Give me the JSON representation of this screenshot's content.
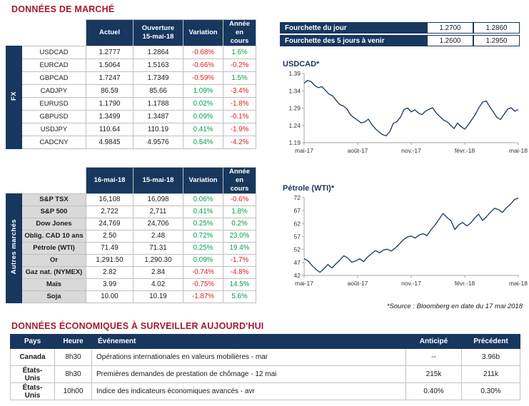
{
  "section1": {
    "title": "DONNÉES DE MARCHÉ"
  },
  "section2": {
    "title": "DONNÉES ÉCONOMIQUES À SURVEILLER AUJOURD'HUI"
  },
  "source_note": "*Source : Bloomberg en date du 17 mai 2018",
  "colors": {
    "navy": "#17375E",
    "title_red": "#A6192E",
    "positive": "#00A14B",
    "negative": "#E31B23",
    "label_gray": "#D9D9D9"
  },
  "fx_table": {
    "group_label": "FX",
    "headers": [
      "Actuel",
      "Ouverture\n15-mai-18",
      "Variation",
      "Année en cours"
    ],
    "rows": [
      {
        "label": "USDCAD",
        "values": [
          "1.2777",
          "1.2864",
          "-0.68%",
          "1.6%"
        ]
      },
      {
        "label": "EURCAD",
        "values": [
          "1.5064",
          "1.5163",
          "-0.66%",
          "-0.2%"
        ]
      },
      {
        "label": "GBPCAD",
        "values": [
          "1.7247",
          "1.7349",
          "-0.59%",
          "1.5%"
        ]
      },
      {
        "label": "CADJPY",
        "values": [
          "86.59",
          "85.66",
          "1.09%",
          "-3.4%"
        ]
      },
      {
        "label": "EURUSD",
        "values": [
          "1.1790",
          "1.1788",
          "0.02%",
          "-1.8%"
        ]
      },
      {
        "label": "GBPUSD",
        "values": [
          "1.3499",
          "1.3487",
          "0.09%",
          "-0.1%"
        ]
      },
      {
        "label": "USDJPY",
        "values": [
          "110.64",
          "110.19",
          "0.41%",
          "-1.9%"
        ]
      },
      {
        "label": "CADCNY",
        "values": [
          "4.9845",
          "4.9576",
          "0.54%",
          "-4.2%"
        ]
      }
    ]
  },
  "range_table": {
    "rows": [
      {
        "label": "Fourchette du jour",
        "low": "1.2700",
        "high": "1.2860"
      },
      {
        "label": "Fourchette des 5 jours à venir",
        "low": "1.2600",
        "high": "1.2950"
      }
    ]
  },
  "markets_table": {
    "group_label": "Autres marchés",
    "headers": [
      "16-mai-18",
      "15-mai-18",
      "Variation",
      "Année en cours"
    ],
    "rows": [
      {
        "label": "S&P TSX",
        "values": [
          "16,108",
          "16,098",
          "0.06%",
          "-0.6%"
        ]
      },
      {
        "label": "S&P 500",
        "values": [
          "2,722",
          "2,711",
          "0.41%",
          "1.8%"
        ]
      },
      {
        "label": "Dow Jones",
        "values": [
          "24,769",
          "24,706",
          "0.25%",
          "0.2%"
        ]
      },
      {
        "label": "Oblig. CAD 10 ans",
        "values": [
          "2.50",
          "2.48",
          "0.72%",
          "23.0%"
        ]
      },
      {
        "label": "Pétrole (WTI)",
        "values": [
          "71.49",
          "71.31",
          "0.25%",
          "19.4%"
        ]
      },
      {
        "label": "Or",
        "values": [
          "1,291.50",
          "1,290.30",
          "0.09%",
          "-1.7%"
        ]
      },
      {
        "label": "Gaz nat. (NYMEX)",
        "values": [
          "2.82",
          "2.84",
          "-0.74%",
          "-4.8%"
        ]
      },
      {
        "label": "Maïs",
        "values": [
          "3.99",
          "4.02",
          "-0.75%",
          "14.5%"
        ]
      },
      {
        "label": "Soja",
        "values": [
          "10.00",
          "10.19",
          "-1.87%",
          "5.6%"
        ]
      }
    ]
  },
  "events_table": {
    "headers": [
      "Pays",
      "Heure",
      "Événement",
      "Anticipé",
      "Précédent"
    ],
    "rows": [
      {
        "country": "Canada",
        "time": "8h30",
        "event": "Opérations internationales en valeurs mobilières - mar",
        "anticipated": "--",
        "previous": "3.96b"
      },
      {
        "country": "États-Unis",
        "time": "8h30",
        "event": "Premières demandes de prestation de chômage - 12 mai",
        "anticipated": "215k",
        "previous": "211k"
      },
      {
        "country": "États-Unis",
        "time": "10h00",
        "event": "Indice des indicateurs économiques avancés - avr",
        "anticipated": "0.40%",
        "previous": "0.30%"
      }
    ]
  },
  "chart_data": [
    {
      "type": "line",
      "title": "USDCAD*",
      "x_ticks": [
        "mai-17",
        "août-17",
        "nov.-17",
        "févr.-18",
        "mai-18"
      ],
      "y_ticks": [
        "1.19",
        "1.24",
        "1.29",
        "1.34",
        "1.39"
      ],
      "ylim": [
        1.19,
        1.39
      ],
      "line_color": "#17375E",
      "grid": false,
      "values": [
        1.362,
        1.37,
        1.366,
        1.355,
        1.349,
        1.352,
        1.341,
        1.33,
        1.325,
        1.312,
        1.3,
        1.296,
        1.288,
        1.27,
        1.262,
        1.255,
        1.247,
        1.25,
        1.258,
        1.242,
        1.23,
        1.221,
        1.213,
        1.21,
        1.222,
        1.246,
        1.251,
        1.264,
        1.286,
        1.29,
        1.279,
        1.285,
        1.276,
        1.271,
        1.281,
        1.287,
        1.291,
        1.276,
        1.266,
        1.256,
        1.251,
        1.241,
        1.231,
        1.247,
        1.236,
        1.229,
        1.242,
        1.257,
        1.272,
        1.292,
        1.307,
        1.311,
        1.294,
        1.279,
        1.263,
        1.257,
        1.272,
        1.287,
        1.291,
        1.281,
        1.286
      ]
    },
    {
      "type": "line",
      "title": "Pétrole (WTI)*",
      "x_ticks": [
        "mai-17",
        "août-17",
        "nov.-17",
        "févr.-18",
        "mai-18"
      ],
      "y_ticks": [
        "42",
        "47",
        "52",
        "57",
        "62",
        "67",
        "72"
      ],
      "ylim": [
        42,
        72
      ],
      "line_color": "#17375E",
      "grid": false,
      "values": [
        48.5,
        47.6,
        45.8,
        44.3,
        43.2,
        44.6,
        46.2,
        44.9,
        46.4,
        47.9,
        49.6,
        48.7,
        47.1,
        47.6,
        48.4,
        47.3,
        49.1,
        50.4,
        51.6,
        50.7,
        51.8,
        52.1,
        51.4,
        52.6,
        54.1,
        55.7,
        56.8,
        57.2,
        56.4,
        57.6,
        58.1,
        57.4,
        59.6,
        61.4,
        63.6,
        65.9,
        64.4,
        63.1,
        59.7,
        61.6,
        62.4,
        61.1,
        62.2,
        64.1,
        65.6,
        63.2,
        64.7,
        66.4,
        67.9,
        67.4,
        66.3,
        68.1,
        69.4,
        71.2,
        71.9
      ]
    }
  ]
}
